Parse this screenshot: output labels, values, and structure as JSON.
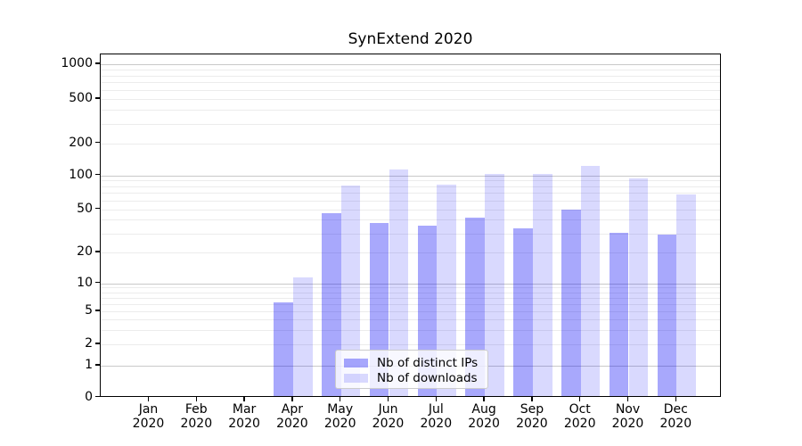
{
  "chart_data": {
    "type": "bar",
    "title": "SynExtend 2020",
    "year": "2020",
    "categories": [
      "Jan",
      "Feb",
      "Mar",
      "Apr",
      "May",
      "Jun",
      "Jul",
      "Aug",
      "Sep",
      "Oct",
      "Nov",
      "Dec"
    ],
    "series": [
      {
        "name": "Nb of distinct IPs",
        "key": "distinct-ips",
        "color": "rgba(0,0,245,0.34)",
        "solid_hex": "#aaaaf8",
        "values": [
          0,
          0,
          0,
          6,
          44,
          36,
          34,
          40,
          32,
          48,
          29,
          28
        ]
      },
      {
        "name": "Nb of downloads",
        "key": "downloads",
        "color": "rgba(0,0,245,0.15)",
        "solid_hex": "#d9d9fb",
        "values": [
          0,
          0,
          0,
          11,
          78,
          109,
          79,
          100,
          100,
          117,
          90,
          65
        ]
      }
    ],
    "yticks": [
      0,
      1,
      2,
      5,
      10,
      20,
      50,
      100,
      200,
      500,
      1000
    ],
    "yscale": "symlog",
    "ylim": [
      0,
      1270
    ],
    "grid": "both",
    "legend_position": "lower-center"
  },
  "colors": {
    "background": "#ffffff",
    "axis": "#000000",
    "major_grid": "#c9c9c9",
    "minor_grid": "#ececec",
    "legend_border": "#cccccc",
    "text": "#000000"
  }
}
